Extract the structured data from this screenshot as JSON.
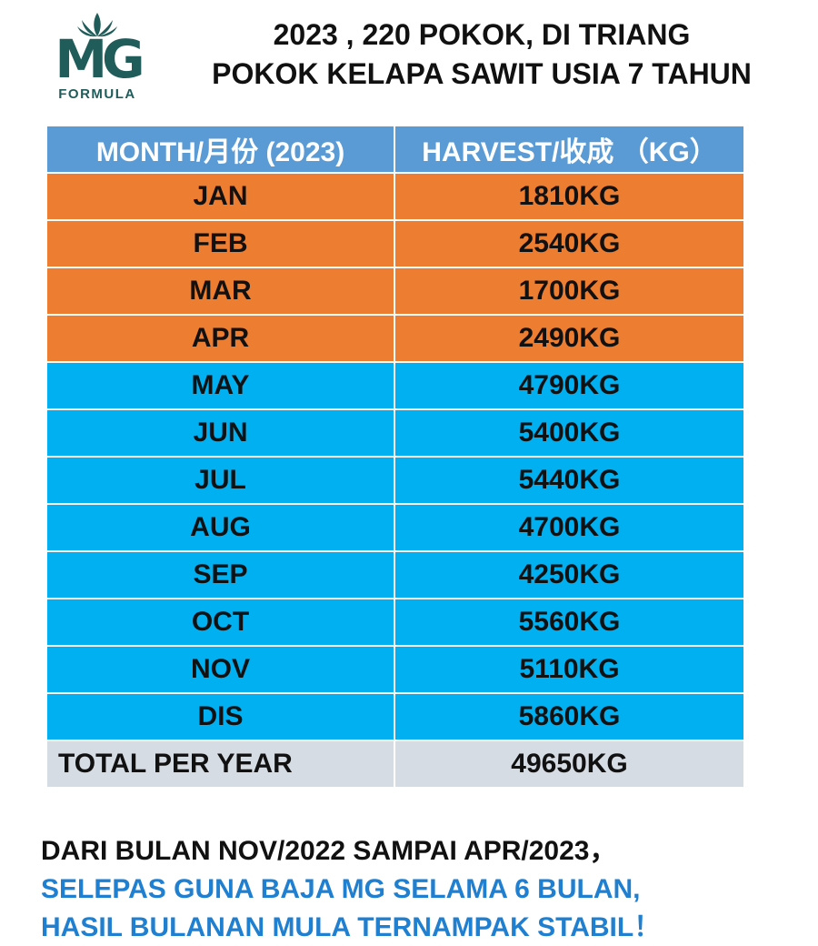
{
  "logo": {
    "mark": "MG",
    "subtitle": "FORMULA",
    "icon": "lotus-icon",
    "color": "#1f5c5a"
  },
  "title": {
    "line1": "2023 , 220 POKOK, DI TRIANG",
    "line2": "POKOK KELAPA SAWIT USIA 7 TAHUN"
  },
  "table": {
    "headers": [
      "MONTH/月份 (2023)",
      "HARVEST/收成 （KG）"
    ],
    "rows": [
      {
        "month": "JAN",
        "harvest": "1810KG",
        "color": "orange"
      },
      {
        "month": "FEB",
        "harvest": "2540KG",
        "color": "orange"
      },
      {
        "month": "MAR",
        "harvest": "1700KG",
        "color": "orange"
      },
      {
        "month": "APR",
        "harvest": "2490KG",
        "color": "orange"
      },
      {
        "month": "MAY",
        "harvest": "4790KG",
        "color": "blue"
      },
      {
        "month": "JUN",
        "harvest": "5400KG",
        "color": "blue"
      },
      {
        "month": "JUL",
        "harvest": "5440KG",
        "color": "blue"
      },
      {
        "month": "AUG",
        "harvest": "4700KG",
        "color": "blue"
      },
      {
        "month": "SEP",
        "harvest": "4250KG",
        "color": "blue"
      },
      {
        "month": "OCT",
        "harvest": "5560KG",
        "color": "blue"
      },
      {
        "month": "NOV",
        "harvest": "5110KG",
        "color": "blue"
      },
      {
        "month": "DIS",
        "harvest": "5860KG",
        "color": "blue"
      }
    ],
    "total": {
      "label": "TOTAL PER YEAR",
      "value": "49650KG"
    },
    "colors": {
      "header": "#5b9bd5",
      "orange": "#ed7d31",
      "blue": "#00b0f0",
      "total": "#d6dce4"
    }
  },
  "notes": {
    "line1": "DARI BULAN NOV/2022 SAMPAI APR/2023，",
    "line2": "SELEPAS GUNA BAJA MG SELAMA 6 BULAN,",
    "line3": "HASIL BULANAN MULA TERNAMPAK STABIL！"
  }
}
